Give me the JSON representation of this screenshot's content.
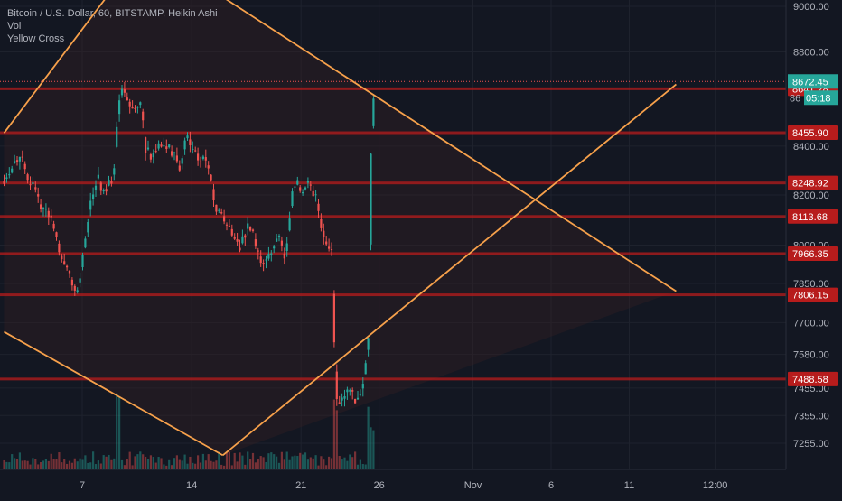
{
  "legend": {
    "title": "Bitcoin / U.S. Dollar, 60, BITSTAMP, Heikin Ashi",
    "vol": "Vol",
    "indicator": "Yellow Cross"
  },
  "colors": {
    "background": "#131722",
    "grid": "#1e222d",
    "axis_text": "#b2b5be",
    "up": "#26a69a",
    "down": "#ef5350",
    "level_line": "#b71c1c",
    "level_label_bg": "#b71c1c",
    "trend_line": "#f7a14b",
    "last_price_bg": "#26a69a"
  },
  "chart_data": {
    "type": "candlestick",
    "symbol": "Bitcoin / U.S. Dollar",
    "timeframe": "60",
    "exchange": "BITSTAMP",
    "candle_style": "Heikin Ashi",
    "y_axis": {
      "ticks": [
        "9000.00",
        "8800.00",
        "8400.00",
        "8200.00",
        "8000.00",
        "7850.00",
        "7700.00",
        "7580.00",
        "7455.00",
        "7355.00",
        "7255.00"
      ],
      "scale": "log"
    },
    "x_axis": {
      "ticks": [
        "7",
        "14",
        "21",
        "26",
        "Nov",
        "6",
        "11",
        "12:00"
      ]
    },
    "last_price": {
      "value": "8672.45",
      "countdown": "05:18",
      "hidden_prefix": "86"
    },
    "horizontal_levels": [
      "8641.28",
      "8455.90",
      "8248.92",
      "8113.68",
      "7966.35",
      "7806.15",
      "7488.58"
    ],
    "trend_lines": [
      {
        "from": {
          "date": "Oct 2",
          "price": 8455
        },
        "to": {
          "date": "Oct 11",
          "price": 9270
        }
      },
      {
        "from": {
          "date": "Oct 2",
          "price": 7665
        },
        "to": {
          "date": "Oct 16",
          "price": 7212
        }
      },
      {
        "from": {
          "date": "Oct 16",
          "price": 7212
        },
        "to": {
          "date": "Nov 14",
          "price": 8660
        }
      },
      {
        "from": {
          "date": "Oct 11",
          "price": 9270
        },
        "to": {
          "date": "Nov 14",
          "price": 7820
        }
      }
    ],
    "price_path": [
      {
        "date": "Oct 2",
        "price": 8270
      },
      {
        "date": "Oct 3",
        "price": 8370
      },
      {
        "date": "Oct 4",
        "price": 8200
      },
      {
        "date": "Oct 5",
        "price": 8100
      },
      {
        "date": "Oct 6",
        "price": 7900
      },
      {
        "date": "Oct 6.7",
        "price": 7810
      },
      {
        "date": "Oct 7",
        "price": 7950
      },
      {
        "date": "Oct 7.5",
        "price": 8150
      },
      {
        "date": "Oct 8",
        "price": 8280
      },
      {
        "date": "Oct 8.4",
        "price": 8200
      },
      {
        "date": "Oct 9",
        "price": 8280
      },
      {
        "date": "Oct 9.3",
        "price": 8600
      },
      {
        "date": "Oct 9.5",
        "price": 8640
      },
      {
        "date": "Oct 10",
        "price": 8560
      },
      {
        "date": "Oct 10.8",
        "price": 8560
      },
      {
        "date": "Oct 11",
        "price": 8380
      },
      {
        "date": "Oct 11.6",
        "price": 8360
      },
      {
        "date": "Oct 12",
        "price": 8420
      },
      {
        "date": "Oct 12.8",
        "price": 8380
      },
      {
        "date": "Oct 13.3",
        "price": 8300
      },
      {
        "date": "Oct 13.6",
        "price": 8440
      },
      {
        "date": "Oct 14.5",
        "price": 8340
      },
      {
        "date": "Oct 15",
        "price": 8350
      },
      {
        "date": "Oct 15.5",
        "price": 8130
      },
      {
        "date": "Oct 16.3",
        "price": 8100
      },
      {
        "date": "Oct 17",
        "price": 7980
      },
      {
        "date": "Oct 17.7",
        "price": 8080
      },
      {
        "date": "Oct 18.5",
        "price": 7930
      },
      {
        "date": "Oct 19",
        "price": 7960
      },
      {
        "date": "Oct 19.5",
        "price": 8040
      },
      {
        "date": "Oct 20",
        "price": 7950
      },
      {
        "date": "Oct 20.5",
        "price": 8260
      },
      {
        "date": "Oct 21",
        "price": 8230
      },
      {
        "date": "Oct 21.5",
        "price": 8240
      },
      {
        "date": "Oct 22",
        "price": 8180
      },
      {
        "date": "Oct 22.5",
        "price": 8000
      },
      {
        "date": "Oct 23",
        "price": 7960
      },
      {
        "date": "Oct 23.2",
        "price": 7440
      },
      {
        "date": "Oct 23.6",
        "price": 7410
      },
      {
        "date": "Oct 24",
        "price": 7430
      },
      {
        "date": "Oct 24.5",
        "price": 7420
      },
      {
        "date": "Oct 25",
        "price": 7460
      },
      {
        "date": "Oct 25.3",
        "price": 7660
      },
      {
        "date": "Oct 25.5",
        "price": 8500
      },
      {
        "date": "Oct 25.8",
        "price": 8670
      }
    ],
    "volume_scale": "bars along bottom, spike near Oct 9 and Oct 23-25"
  }
}
